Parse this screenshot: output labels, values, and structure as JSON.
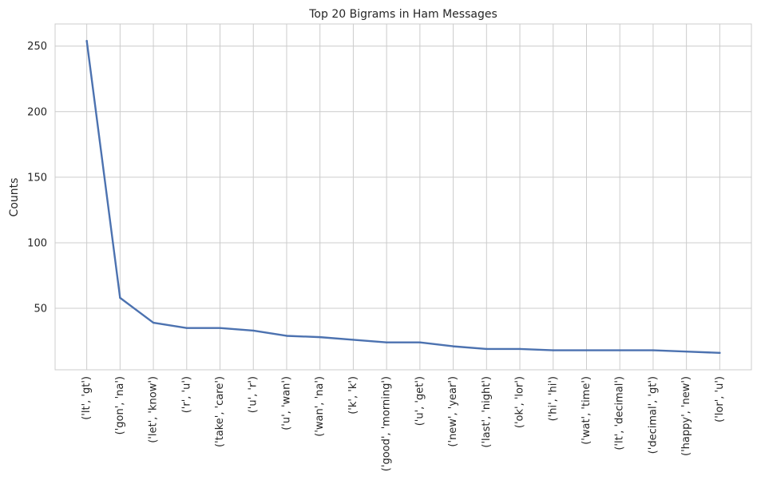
{
  "chart_data": {
    "type": "line",
    "title": "Top 20 Bigrams in Ham Messages",
    "xlabel": "",
    "ylabel": "Counts",
    "categories": [
      "('lt', 'gt')",
      "('gon', 'na')",
      "('let', 'know')",
      "('r', 'u')",
      "('take', 'care')",
      "('u', 'r')",
      "('u', 'wan')",
      "('wan', 'na')",
      "('k', 'k')",
      "('good', 'morning')",
      "('u', 'get')",
      "('new', 'year')",
      "('last', 'night')",
      "('ok', 'lor')",
      "('hi', 'hi')",
      "('wat', 'time')",
      "('lt', 'decimal')",
      "('decimal', 'gt')",
      "('happy', 'new')",
      "('lor', 'u')"
    ],
    "values": [
      254,
      58,
      39,
      35,
      35,
      33,
      29,
      28,
      26,
      24,
      24,
      21,
      19,
      19,
      18,
      18,
      18,
      18,
      17,
      16
    ],
    "ylim": [
      3.1,
      266.9
    ],
    "yticks": [
      50,
      100,
      150,
      200,
      250
    ],
    "grid": true,
    "line_color": "#4c72b0"
  }
}
